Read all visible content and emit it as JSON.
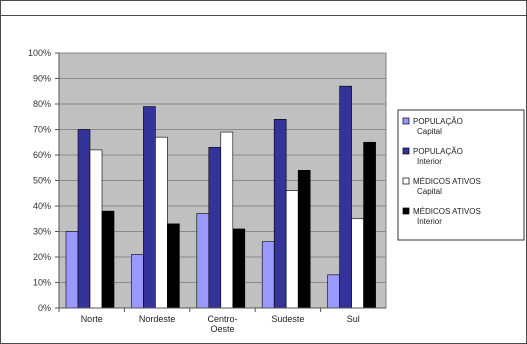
{
  "chart_data": {
    "type": "bar",
    "categories": [
      "Norte",
      "Nordeste",
      "Centro-Oeste",
      "Sudeste",
      "Sul"
    ],
    "category_lines": [
      [
        "Norte"
      ],
      [
        "Nordeste"
      ],
      [
        "Centro-",
        "Oeste"
      ],
      [
        "Sudeste"
      ],
      [
        "Sul"
      ]
    ],
    "ylim": [
      0,
      100
    ],
    "yticks": [
      "0%",
      "10%",
      "20%",
      "30%",
      "40%",
      "50%",
      "60%",
      "70%",
      "80%",
      "90%",
      "100%"
    ],
    "series": [
      {
        "name": "POPULAÇÃO Capital",
        "lines": [
          "POPULAÇÃO",
          "Capital"
        ],
        "color": "#9999ff",
        "values": [
          30,
          21,
          37,
          26,
          13
        ]
      },
      {
        "name": "POPULAÇÃO Interior",
        "lines": [
          "POPULAÇÃO",
          "Interior"
        ],
        "color": "#333399",
        "values": [
          70,
          79,
          63,
          74,
          87
        ]
      },
      {
        "name": "MÉDICOS ATIVOS Capital",
        "lines": [
          "MÉDICOS ATIVOS",
          "Capital"
        ],
        "color": "#ffffff",
        "values": [
          62,
          67,
          69,
          46,
          35
        ]
      },
      {
        "name": "MÉDICOS ATIVOS Interior",
        "lines": [
          "MÉDICOS ATIVOS",
          "Interior"
        ],
        "color": "#000000",
        "values": [
          38,
          33,
          31,
          54,
          65
        ]
      }
    ],
    "plot_background": "#c0c0c0",
    "grid": true,
    "legend_position": "right"
  }
}
